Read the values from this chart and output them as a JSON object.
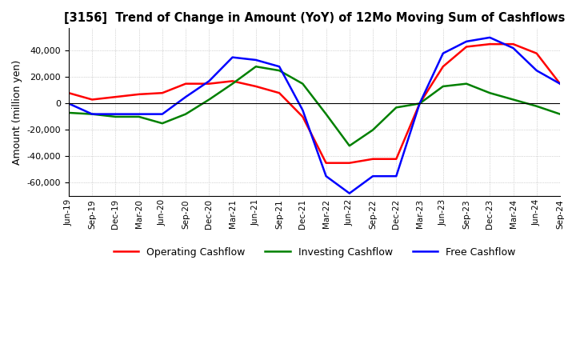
{
  "title": "[3156]  Trend of Change in Amount (YoY) of 12Mo Moving Sum of Cashflows",
  "ylabel": "Amount (million yen)",
  "x_labels": [
    "Jun-19",
    "Sep-19",
    "Dec-19",
    "Mar-20",
    "Jun-20",
    "Sep-20",
    "Dec-20",
    "Mar-21",
    "Jun-21",
    "Sep-21",
    "Dec-21",
    "Mar-22",
    "Jun-22",
    "Sep-22",
    "Dec-22",
    "Mar-23",
    "Jun-23",
    "Sep-23",
    "Dec-23",
    "Mar-24",
    "Jun-24",
    "Sep-24"
  ],
  "operating": [
    8000,
    3000,
    5000,
    7000,
    8000,
    15000,
    15000,
    17000,
    13000,
    8000,
    -10000,
    -45000,
    -45000,
    -42000,
    -42000,
    0,
    28000,
    43000,
    45000,
    45000,
    38000,
    15000
  ],
  "investing": [
    -7000,
    -8000,
    -10000,
    -10000,
    -15000,
    -8000,
    3000,
    15000,
    28000,
    25000,
    15000,
    -8000,
    -32000,
    -20000,
    -3000,
    0,
    13000,
    15000,
    8000,
    3000,
    -2000,
    -8000
  ],
  "free": [
    0,
    -8000,
    -8000,
    -8000,
    -8000,
    5000,
    17000,
    35000,
    33000,
    28000,
    -5000,
    -55000,
    -68000,
    -55000,
    -55000,
    0,
    38000,
    47000,
    50000,
    42000,
    25000,
    15000
  ],
  "operating_color": "#ff0000",
  "investing_color": "#008000",
  "free_color": "#0000ff",
  "ylim": [
    -70000,
    57000
  ],
  "yticks": [
    -60000,
    -40000,
    -20000,
    0,
    20000,
    40000
  ],
  "grid_color": "#b0b0b0",
  "background_color": "#ffffff",
  "legend_labels": [
    "Operating Cashflow",
    "Investing Cashflow",
    "Free Cashflow"
  ]
}
